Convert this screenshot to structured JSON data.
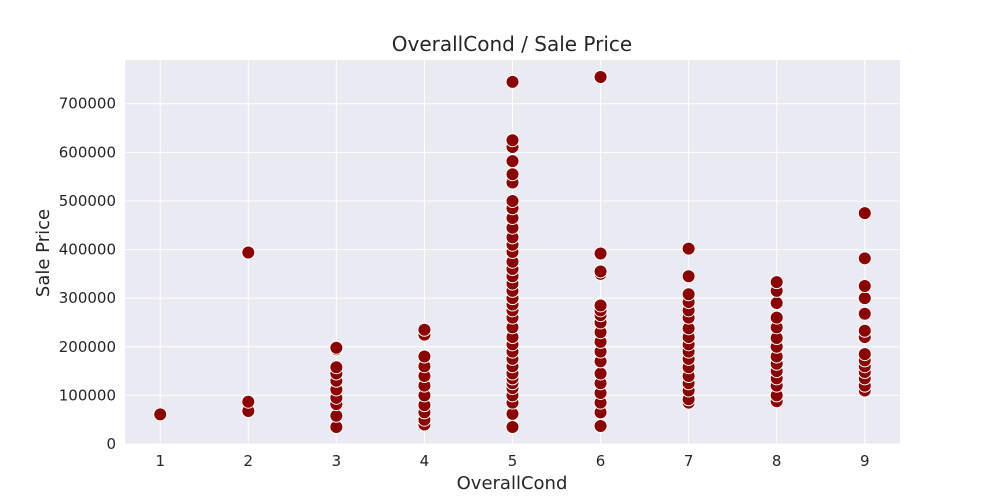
{
  "chart_data": {
    "type": "scatter",
    "title": "OverallCond / Sale Price",
    "xlabel": "OverallCond",
    "ylabel": "Sale Price",
    "x_ticks": [
      1,
      2,
      3,
      4,
      5,
      6,
      7,
      8,
      9
    ],
    "y_ticks": [
      0,
      100000,
      200000,
      300000,
      400000,
      500000,
      600000,
      700000
    ],
    "xlim": [
      0.6,
      9.4
    ],
    "ylim": [
      0,
      790000
    ],
    "grid": true,
    "point_color": "#8b0000",
    "background_color": "#eaeaf2",
    "points": [
      [
        1,
        61000
      ],
      [
        2,
        68000
      ],
      [
        2,
        87000
      ],
      [
        2,
        394000
      ],
      [
        3,
        35000
      ],
      [
        3,
        58000
      ],
      [
        3,
        82000
      ],
      [
        3,
        95000
      ],
      [
        3,
        112000
      ],
      [
        3,
        130000
      ],
      [
        3,
        145000
      ],
      [
        3,
        158000
      ],
      [
        3,
        195000
      ],
      [
        3,
        198000
      ],
      [
        4,
        40000
      ],
      [
        4,
        50000
      ],
      [
        4,
        65000
      ],
      [
        4,
        80000
      ],
      [
        4,
        100000
      ],
      [
        4,
        120000
      ],
      [
        4,
        140000
      ],
      [
        4,
        160000
      ],
      [
        4,
        180000
      ],
      [
        4,
        225000
      ],
      [
        4,
        235000
      ],
      [
        5,
        35000
      ],
      [
        5,
        62000
      ],
      [
        5,
        85000
      ],
      [
        5,
        100000
      ],
      [
        5,
        115000
      ],
      [
        5,
        125000
      ],
      [
        5,
        135000
      ],
      [
        5,
        145000
      ],
      [
        5,
        160000
      ],
      [
        5,
        175000
      ],
      [
        5,
        190000
      ],
      [
        5,
        205000
      ],
      [
        5,
        220000
      ],
      [
        5,
        240000
      ],
      [
        5,
        260000
      ],
      [
        5,
        275000
      ],
      [
        5,
        287000
      ],
      [
        5,
        300000
      ],
      [
        5,
        315000
      ],
      [
        5,
        330000
      ],
      [
        5,
        345000
      ],
      [
        5,
        360000
      ],
      [
        5,
        375000
      ],
      [
        5,
        395000
      ],
      [
        5,
        410000
      ],
      [
        5,
        425000
      ],
      [
        5,
        445000
      ],
      [
        5,
        465000
      ],
      [
        5,
        485000
      ],
      [
        5,
        500000
      ],
      [
        5,
        538000
      ],
      [
        5,
        555000
      ],
      [
        5,
        582000
      ],
      [
        5,
        611000
      ],
      [
        5,
        625000
      ],
      [
        5,
        745000
      ],
      [
        6,
        37000
      ],
      [
        6,
        65000
      ],
      [
        6,
        85000
      ],
      [
        6,
        105000
      ],
      [
        6,
        125000
      ],
      [
        6,
        145000
      ],
      [
        6,
        170000
      ],
      [
        6,
        190000
      ],
      [
        6,
        210000
      ],
      [
        6,
        230000
      ],
      [
        6,
        250000
      ],
      [
        6,
        265000
      ],
      [
        6,
        275000
      ],
      [
        6,
        285000
      ],
      [
        6,
        350000
      ],
      [
        6,
        355000
      ],
      [
        6,
        392000
      ],
      [
        6,
        755000
      ],
      [
        7,
        85000
      ],
      [
        7,
        92000
      ],
      [
        7,
        110000
      ],
      [
        7,
        125000
      ],
      [
        7,
        140000
      ],
      [
        7,
        158000
      ],
      [
        7,
        175000
      ],
      [
        7,
        190000
      ],
      [
        7,
        205000
      ],
      [
        7,
        220000
      ],
      [
        7,
        238000
      ],
      [
        7,
        260000
      ],
      [
        7,
        275000
      ],
      [
        7,
        292000
      ],
      [
        7,
        308000
      ],
      [
        7,
        345000
      ],
      [
        7,
        402000
      ],
      [
        8,
        88000
      ],
      [
        8,
        100000
      ],
      [
        8,
        120000
      ],
      [
        8,
        135000
      ],
      [
        8,
        150000
      ],
      [
        8,
        165000
      ],
      [
        8,
        180000
      ],
      [
        8,
        200000
      ],
      [
        8,
        218000
      ],
      [
        8,
        240000
      ],
      [
        8,
        260000
      ],
      [
        8,
        290000
      ],
      [
        8,
        315000
      ],
      [
        8,
        333000
      ],
      [
        9,
        110000
      ],
      [
        9,
        120000
      ],
      [
        9,
        135000
      ],
      [
        9,
        148000
      ],
      [
        9,
        160000
      ],
      [
        9,
        172000
      ],
      [
        9,
        185000
      ],
      [
        9,
        220000
      ],
      [
        9,
        233000
      ],
      [
        9,
        268000
      ],
      [
        9,
        300000
      ],
      [
        9,
        325000
      ],
      [
        9,
        382000
      ],
      [
        9,
        475000
      ]
    ]
  }
}
